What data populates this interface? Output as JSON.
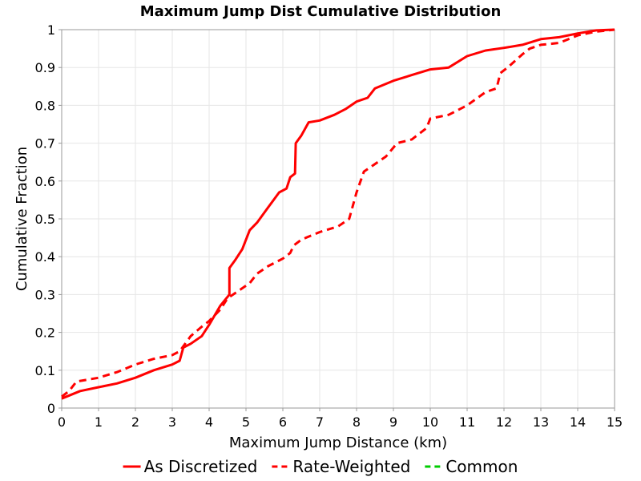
{
  "chart_data": {
    "type": "line",
    "title": "Maximum Jump Dist Cumulative Distribution",
    "xlabel": "Maximum Jump Distance (km)",
    "ylabel": "Cumulative Fraction",
    "xlim": [
      0,
      15
    ],
    "ylim": [
      0,
      1
    ],
    "xticks": [
      0,
      1,
      2,
      3,
      4,
      5,
      6,
      7,
      8,
      9,
      10,
      11,
      12,
      13,
      14,
      15
    ],
    "yticks": [
      0,
      0.1,
      0.2,
      0.3,
      0.4,
      0.5,
      0.6,
      0.7,
      0.8,
      0.9,
      1
    ],
    "ytick_labels": [
      "0",
      "0.1",
      "0.2",
      "0.3",
      "0.4",
      "0.5",
      "0.6",
      "0.7",
      "0.8",
      "0.9",
      "1"
    ],
    "grid": true,
    "legend_position": "bottom",
    "series": [
      {
        "name": "As Discretized",
        "color": "#ff0000",
        "dash": "solid",
        "points": [
          [
            0,
            0.025
          ],
          [
            0.5,
            0.045
          ],
          [
            1,
            0.055
          ],
          [
            1.5,
            0.065
          ],
          [
            2,
            0.08
          ],
          [
            2.5,
            0.1
          ],
          [
            3,
            0.115
          ],
          [
            3.2,
            0.125
          ],
          [
            3.3,
            0.16
          ],
          [
            3.5,
            0.17
          ],
          [
            3.8,
            0.19
          ],
          [
            4,
            0.22
          ],
          [
            4.3,
            0.27
          ],
          [
            4.55,
            0.3
          ],
          [
            4.55,
            0.37
          ],
          [
            4.7,
            0.39
          ],
          [
            4.9,
            0.42
          ],
          [
            5.1,
            0.47
          ],
          [
            5.3,
            0.49
          ],
          [
            5.6,
            0.53
          ],
          [
            5.9,
            0.57
          ],
          [
            6.1,
            0.58
          ],
          [
            6.2,
            0.61
          ],
          [
            6.33,
            0.62
          ],
          [
            6.35,
            0.7
          ],
          [
            6.5,
            0.72
          ],
          [
            6.7,
            0.755
          ],
          [
            7,
            0.76
          ],
          [
            7.4,
            0.775
          ],
          [
            7.7,
            0.79
          ],
          [
            8,
            0.81
          ],
          [
            8.3,
            0.82
          ],
          [
            8.5,
            0.845
          ],
          [
            9,
            0.865
          ],
          [
            9.5,
            0.88
          ],
          [
            10,
            0.895
          ],
          [
            10.5,
            0.9
          ],
          [
            11,
            0.93
          ],
          [
            11.5,
            0.945
          ],
          [
            12,
            0.952
          ],
          [
            12.5,
            0.96
          ],
          [
            13,
            0.975
          ],
          [
            13.5,
            0.98
          ],
          [
            14,
            0.99
          ],
          [
            14.5,
            0.998
          ],
          [
            15,
            1
          ]
        ]
      },
      {
        "name": "Rate-Weighted",
        "color": "#ff0000",
        "dash": "dashed",
        "points": [
          [
            0,
            0.03
          ],
          [
            0.2,
            0.045
          ],
          [
            0.4,
            0.07
          ],
          [
            1,
            0.08
          ],
          [
            1.5,
            0.095
          ],
          [
            2,
            0.115
          ],
          [
            2.5,
            0.13
          ],
          [
            3,
            0.14
          ],
          [
            3.2,
            0.15
          ],
          [
            3.5,
            0.19
          ],
          [
            3.8,
            0.215
          ],
          [
            4,
            0.23
          ],
          [
            4.3,
            0.26
          ],
          [
            4.5,
            0.29
          ],
          [
            4.8,
            0.31
          ],
          [
            5.1,
            0.33
          ],
          [
            5.3,
            0.355
          ],
          [
            5.6,
            0.375
          ],
          [
            6,
            0.395
          ],
          [
            6.2,
            0.41
          ],
          [
            6.3,
            0.43
          ],
          [
            6.5,
            0.445
          ],
          [
            7,
            0.465
          ],
          [
            7.5,
            0.48
          ],
          [
            7.8,
            0.5
          ],
          [
            8,
            0.57
          ],
          [
            8.2,
            0.625
          ],
          [
            8.5,
            0.645
          ],
          [
            8.8,
            0.665
          ],
          [
            9.1,
            0.7
          ],
          [
            9.5,
            0.71
          ],
          [
            9.9,
            0.74
          ],
          [
            10,
            0.765
          ],
          [
            10.5,
            0.775
          ],
          [
            11,
            0.8
          ],
          [
            11.5,
            0.835
          ],
          [
            11.8,
            0.845
          ],
          [
            11.9,
            0.885
          ],
          [
            12.1,
            0.9
          ],
          [
            12.5,
            0.935
          ],
          [
            12.7,
            0.95
          ],
          [
            13,
            0.96
          ],
          [
            13.5,
            0.965
          ],
          [
            14,
            0.985
          ],
          [
            14.5,
            0.995
          ],
          [
            15,
            1
          ]
        ]
      },
      {
        "name": "Common",
        "color": "#00cc00",
        "dash": "dashed",
        "points": []
      }
    ]
  }
}
